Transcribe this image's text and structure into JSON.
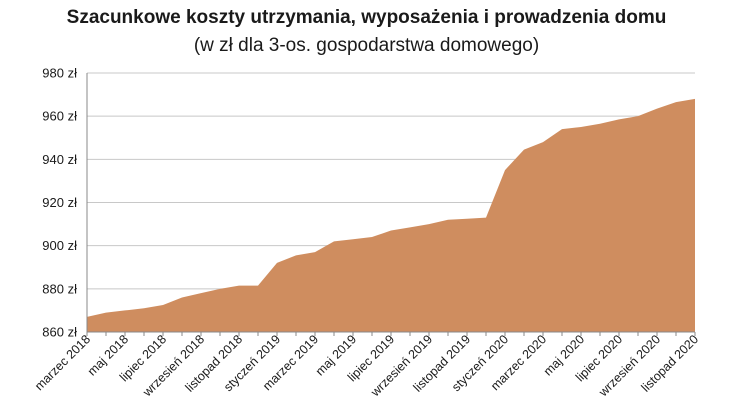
{
  "chart_data": {
    "type": "area",
    "title": "Szacunkowe koszty utrzymania, wyposażenia i prowadzenia domu",
    "subtitle": "(w zł dla 3-os. gospodarstwa domowego)",
    "xlabel": "",
    "ylabel": "",
    "ylim": [
      860,
      980
    ],
    "yticks": [
      860,
      880,
      900,
      920,
      940,
      960,
      980
    ],
    "ytick_labels": [
      "860 zł",
      "880 zł",
      "900 zł",
      "920 zł",
      "940 zł",
      "960 zł",
      "980 zł"
    ],
    "grid": true,
    "legend": "none",
    "x": [
      "marzec 2018",
      "kwiecień 2018",
      "maj 2018",
      "czerwiec 2018",
      "lipiec 2018",
      "sierpień 2018",
      "wrzesień 2018",
      "październik 2018",
      "listopad 2018",
      "grudzień 2018",
      "styczeń 2019",
      "luty 2019",
      "marzec 2019",
      "kwiecień 2019",
      "maj 2019",
      "czerwiec 2019",
      "lipiec 2019",
      "sierpień 2019",
      "wrzesień 2019",
      "październik 2019",
      "listopad 2019",
      "grudzień 2019",
      "styczeń 2020",
      "luty 2020",
      "marzec 2020",
      "kwiecień 2020",
      "maj 2020",
      "czerwiec 2020",
      "lipiec 2020",
      "sierpień 2020",
      "wrzesień 2020",
      "październik 2020",
      "listopad 2020"
    ],
    "xtick_labels": [
      "marzec 2018",
      "maj 2018",
      "lipiec 2018",
      "wrzesień 2018",
      "listopad 2018",
      "styczeń 2019",
      "marzec 2019",
      "maj 2019",
      "lipiec 2019",
      "wrzesień 2019",
      "listopad 2019",
      "styczeń 2020",
      "marzec 2020",
      "maj 2020",
      "lipiec 2020",
      "wrzesień 2020",
      "listopad 2020"
    ],
    "series": [
      {
        "values": [
          867,
          869,
          870,
          871,
          872.5,
          876,
          878,
          880,
          881.5,
          881.5,
          892,
          895.5,
          897,
          902,
          903,
          904,
          907,
          908.5,
          910,
          912,
          912.5,
          913,
          935,
          944.5,
          948,
          954,
          955,
          956.5,
          958.5,
          960,
          963.5,
          966.5,
          968
        ]
      }
    ],
    "colors": {
      "area": "#cf8d5f",
      "grid": "#c8c8c8",
      "axis": "#888888"
    }
  }
}
